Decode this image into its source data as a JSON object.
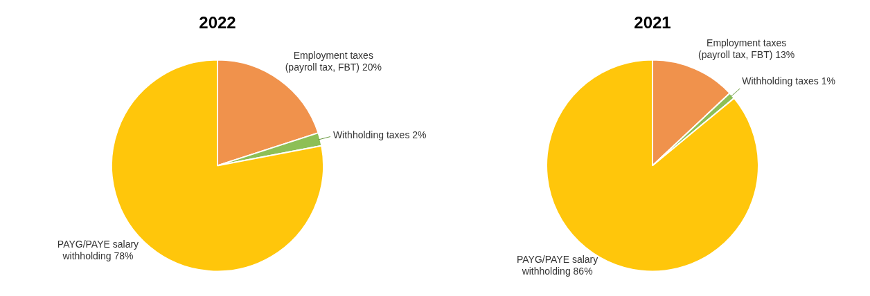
{
  "chart_data": [
    {
      "type": "pie",
      "title": "2022",
      "categories": [
        "Employment taxes (payroll tax, FBT)",
        "Withholding taxes",
        "PAYG/PAYE salary withholding"
      ],
      "values": [
        20,
        2,
        78
      ],
      "value_labels": [
        "20%",
        "2%",
        "78%"
      ],
      "colors": [
        "#f0924c",
        "#8dbf56",
        "#ffc60b"
      ],
      "legend": false
    },
    {
      "type": "pie",
      "title": "2021",
      "categories": [
        "Employment taxes (payroll tax, FBT)",
        "Withholding taxes",
        "PAYG/PAYE salary withholding"
      ],
      "values": [
        13,
        1,
        86
      ],
      "value_labels": [
        "13%",
        "1%",
        "86%"
      ],
      "colors": [
        "#f0924c",
        "#8dbf56",
        "#ffc60b"
      ],
      "legend": false
    }
  ]
}
